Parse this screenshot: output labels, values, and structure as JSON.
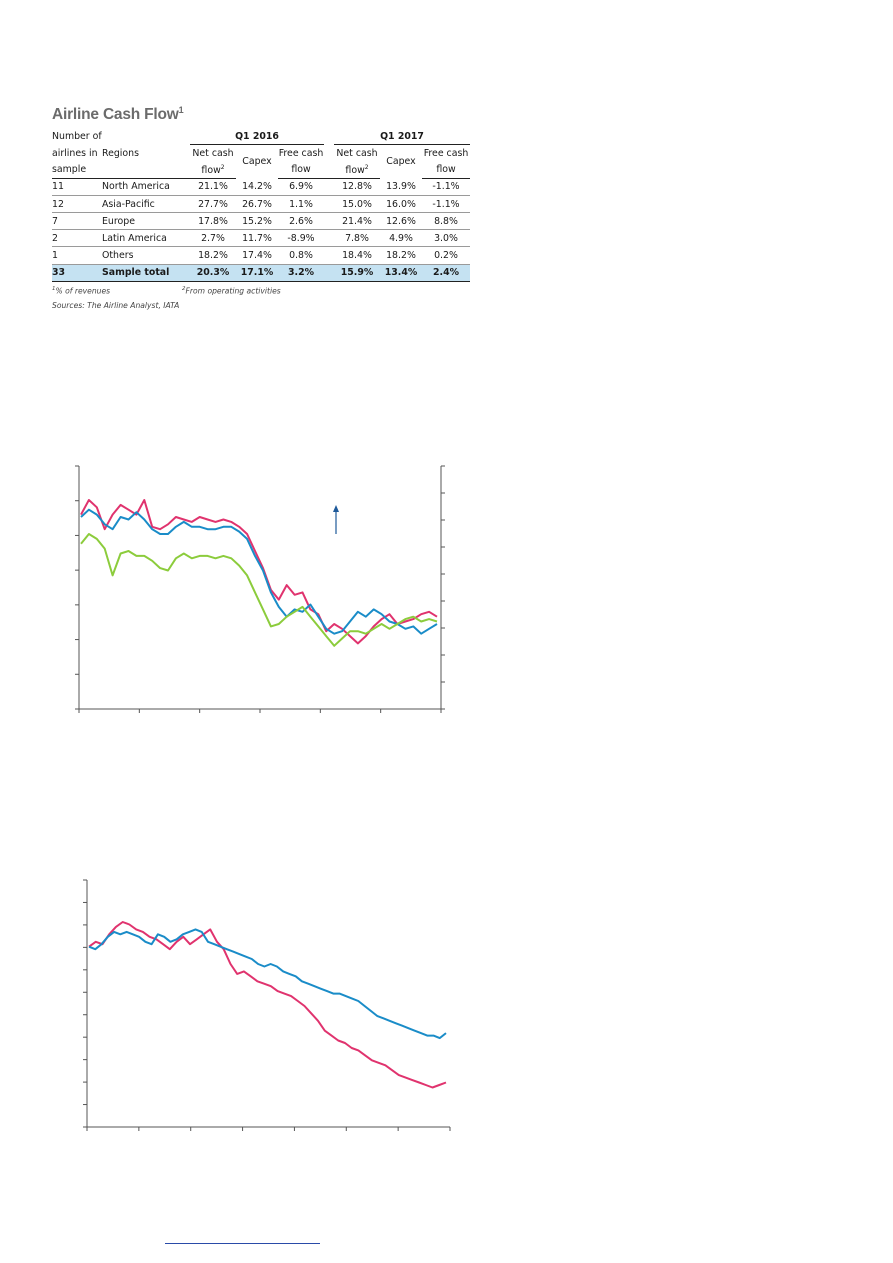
{
  "table": {
    "title": "Airline Cash Flow",
    "title_sup": "1",
    "groups": [
      "Q1 2016",
      "Q1 2017"
    ],
    "head": {
      "num_line1": "Number of",
      "num_line2": "airlines in",
      "num_line3": "sample",
      "regions": "Regions",
      "ncf_line1": "Net cash",
      "ncf_line2": "flow",
      "ncf_sup": "2",
      "capex": "Capex",
      "fcf_line1": "Free cash",
      "fcf_line2": "flow"
    },
    "rows": [
      {
        "n": "11",
        "region": "North America",
        "v": [
          "21.1%",
          "14.2%",
          "6.9%",
          "12.8%",
          "13.9%",
          "-1.1%"
        ]
      },
      {
        "n": "12",
        "region": "Asia-Pacific",
        "v": [
          "27.7%",
          "26.7%",
          "1.1%",
          "15.0%",
          "16.0%",
          "-1.1%"
        ]
      },
      {
        "n": "7",
        "region": "Europe",
        "v": [
          "17.8%",
          "15.2%",
          "2.6%",
          "21.4%",
          "12.6%",
          "8.8%"
        ]
      },
      {
        "n": "2",
        "region": "Latin America",
        "v": [
          "2.7%",
          "11.7%",
          "-8.9%",
          "7.8%",
          "4.9%",
          "3.0%"
        ]
      },
      {
        "n": "1",
        "region": "Others",
        "v": [
          "18.2%",
          "17.4%",
          "0.8%",
          "18.4%",
          "18.2%",
          "0.2%"
        ]
      },
      {
        "n": "33",
        "region": "Sample total",
        "v": [
          "20.3%",
          "17.1%",
          "3.2%",
          "15.9%",
          "13.4%",
          "2.4%"
        ]
      }
    ],
    "notes": {
      "n1_sup": "1",
      "n1": "% of revenues",
      "n2_sup": "2",
      "n2": "From operating activities",
      "sources": "Sources: The Airline Analyst, IATA"
    }
  },
  "colors": {
    "pink": "#e0336e",
    "blue": "#1a8cc8",
    "green": "#8ccc3c",
    "axis": "#555555",
    "total_row": "#c5e2f2",
    "link": "#2a4ba8"
  },
  "icons": {
    "arrow": "up-arrow-icon"
  },
  "chart_data": [
    {
      "type": "line",
      "ylim": [
        0,
        100
      ],
      "y2lim": [
        0,
        100
      ],
      "x_ticks": 6,
      "y_ticks": 7,
      "y2_ticks": 9,
      "series": [
        {
          "color_key": "pink",
          "values": [
            80,
            86,
            83,
            74,
            80,
            84,
            82,
            80,
            86,
            75,
            74,
            76,
            79,
            78,
            77,
            79,
            78,
            77,
            78,
            77,
            75,
            72,
            65,
            58,
            49,
            45,
            51,
            47,
            48,
            41,
            39,
            32,
            35,
            33,
            30,
            27,
            30,
            34,
            37,
            39,
            35,
            36,
            37,
            39,
            40,
            38
          ]
        },
        {
          "color_key": "blue",
          "values": [
            79,
            82,
            80,
            76,
            74,
            79,
            78,
            81,
            78,
            74,
            72,
            72,
            75,
            77,
            75,
            75,
            74,
            74,
            75,
            75,
            73,
            70,
            63,
            57,
            48,
            42,
            38,
            41,
            40,
            43,
            38,
            33,
            31,
            32,
            36,
            40,
            38,
            41,
            39,
            36,
            35,
            33,
            34,
            31,
            33,
            35
          ]
        },
        {
          "color_key": "green",
          "values": [
            68,
            72,
            70,
            66,
            55,
            64,
            65,
            63,
            63,
            61,
            58,
            57,
            62,
            64,
            62,
            63,
            63,
            62,
            63,
            62,
            59,
            55,
            48,
            41,
            34,
            35,
            38,
            40,
            42,
            38,
            34,
            30,
            26,
            29,
            32,
            32,
            31,
            33,
            35,
            33,
            35,
            37,
            38,
            36,
            37,
            36
          ]
        }
      ],
      "annotation": {
        "icon": "up-arrow-icon",
        "x_frac_note": "arrow marker near top-right"
      }
    },
    {
      "type": "line",
      "ylim": [
        0,
        100
      ],
      "x_ticks": 7,
      "y_ticks": 11,
      "series": [
        {
          "color_key": "pink",
          "values": [
            73,
            75,
            74,
            78,
            81,
            83,
            82,
            80,
            79,
            77,
            76,
            74,
            72,
            75,
            77,
            74,
            76,
            78,
            80,
            75,
            72,
            66,
            62,
            63,
            61,
            59,
            58,
            57,
            55,
            54,
            53,
            51,
            49,
            46,
            43,
            39,
            37,
            35,
            34,
            32,
            31,
            29,
            27,
            26,
            25,
            23,
            21,
            20,
            19,
            18,
            17,
            16,
            17,
            18
          ]
        },
        {
          "color_key": "blue",
          "values": [
            73,
            72,
            74,
            77,
            79,
            78,
            79,
            78,
            77,
            75,
            74,
            78,
            77,
            75,
            76,
            78,
            79,
            80,
            79,
            75,
            74,
            73,
            72,
            71,
            70,
            69,
            68,
            66,
            65,
            66,
            65,
            63,
            62,
            61,
            59,
            58,
            57,
            56,
            55,
            54,
            54,
            53,
            52,
            51,
            49,
            47,
            45,
            44,
            43,
            42,
            41,
            40,
            39,
            38,
            37,
            37,
            36,
            38
          ]
        }
      ]
    }
  ]
}
